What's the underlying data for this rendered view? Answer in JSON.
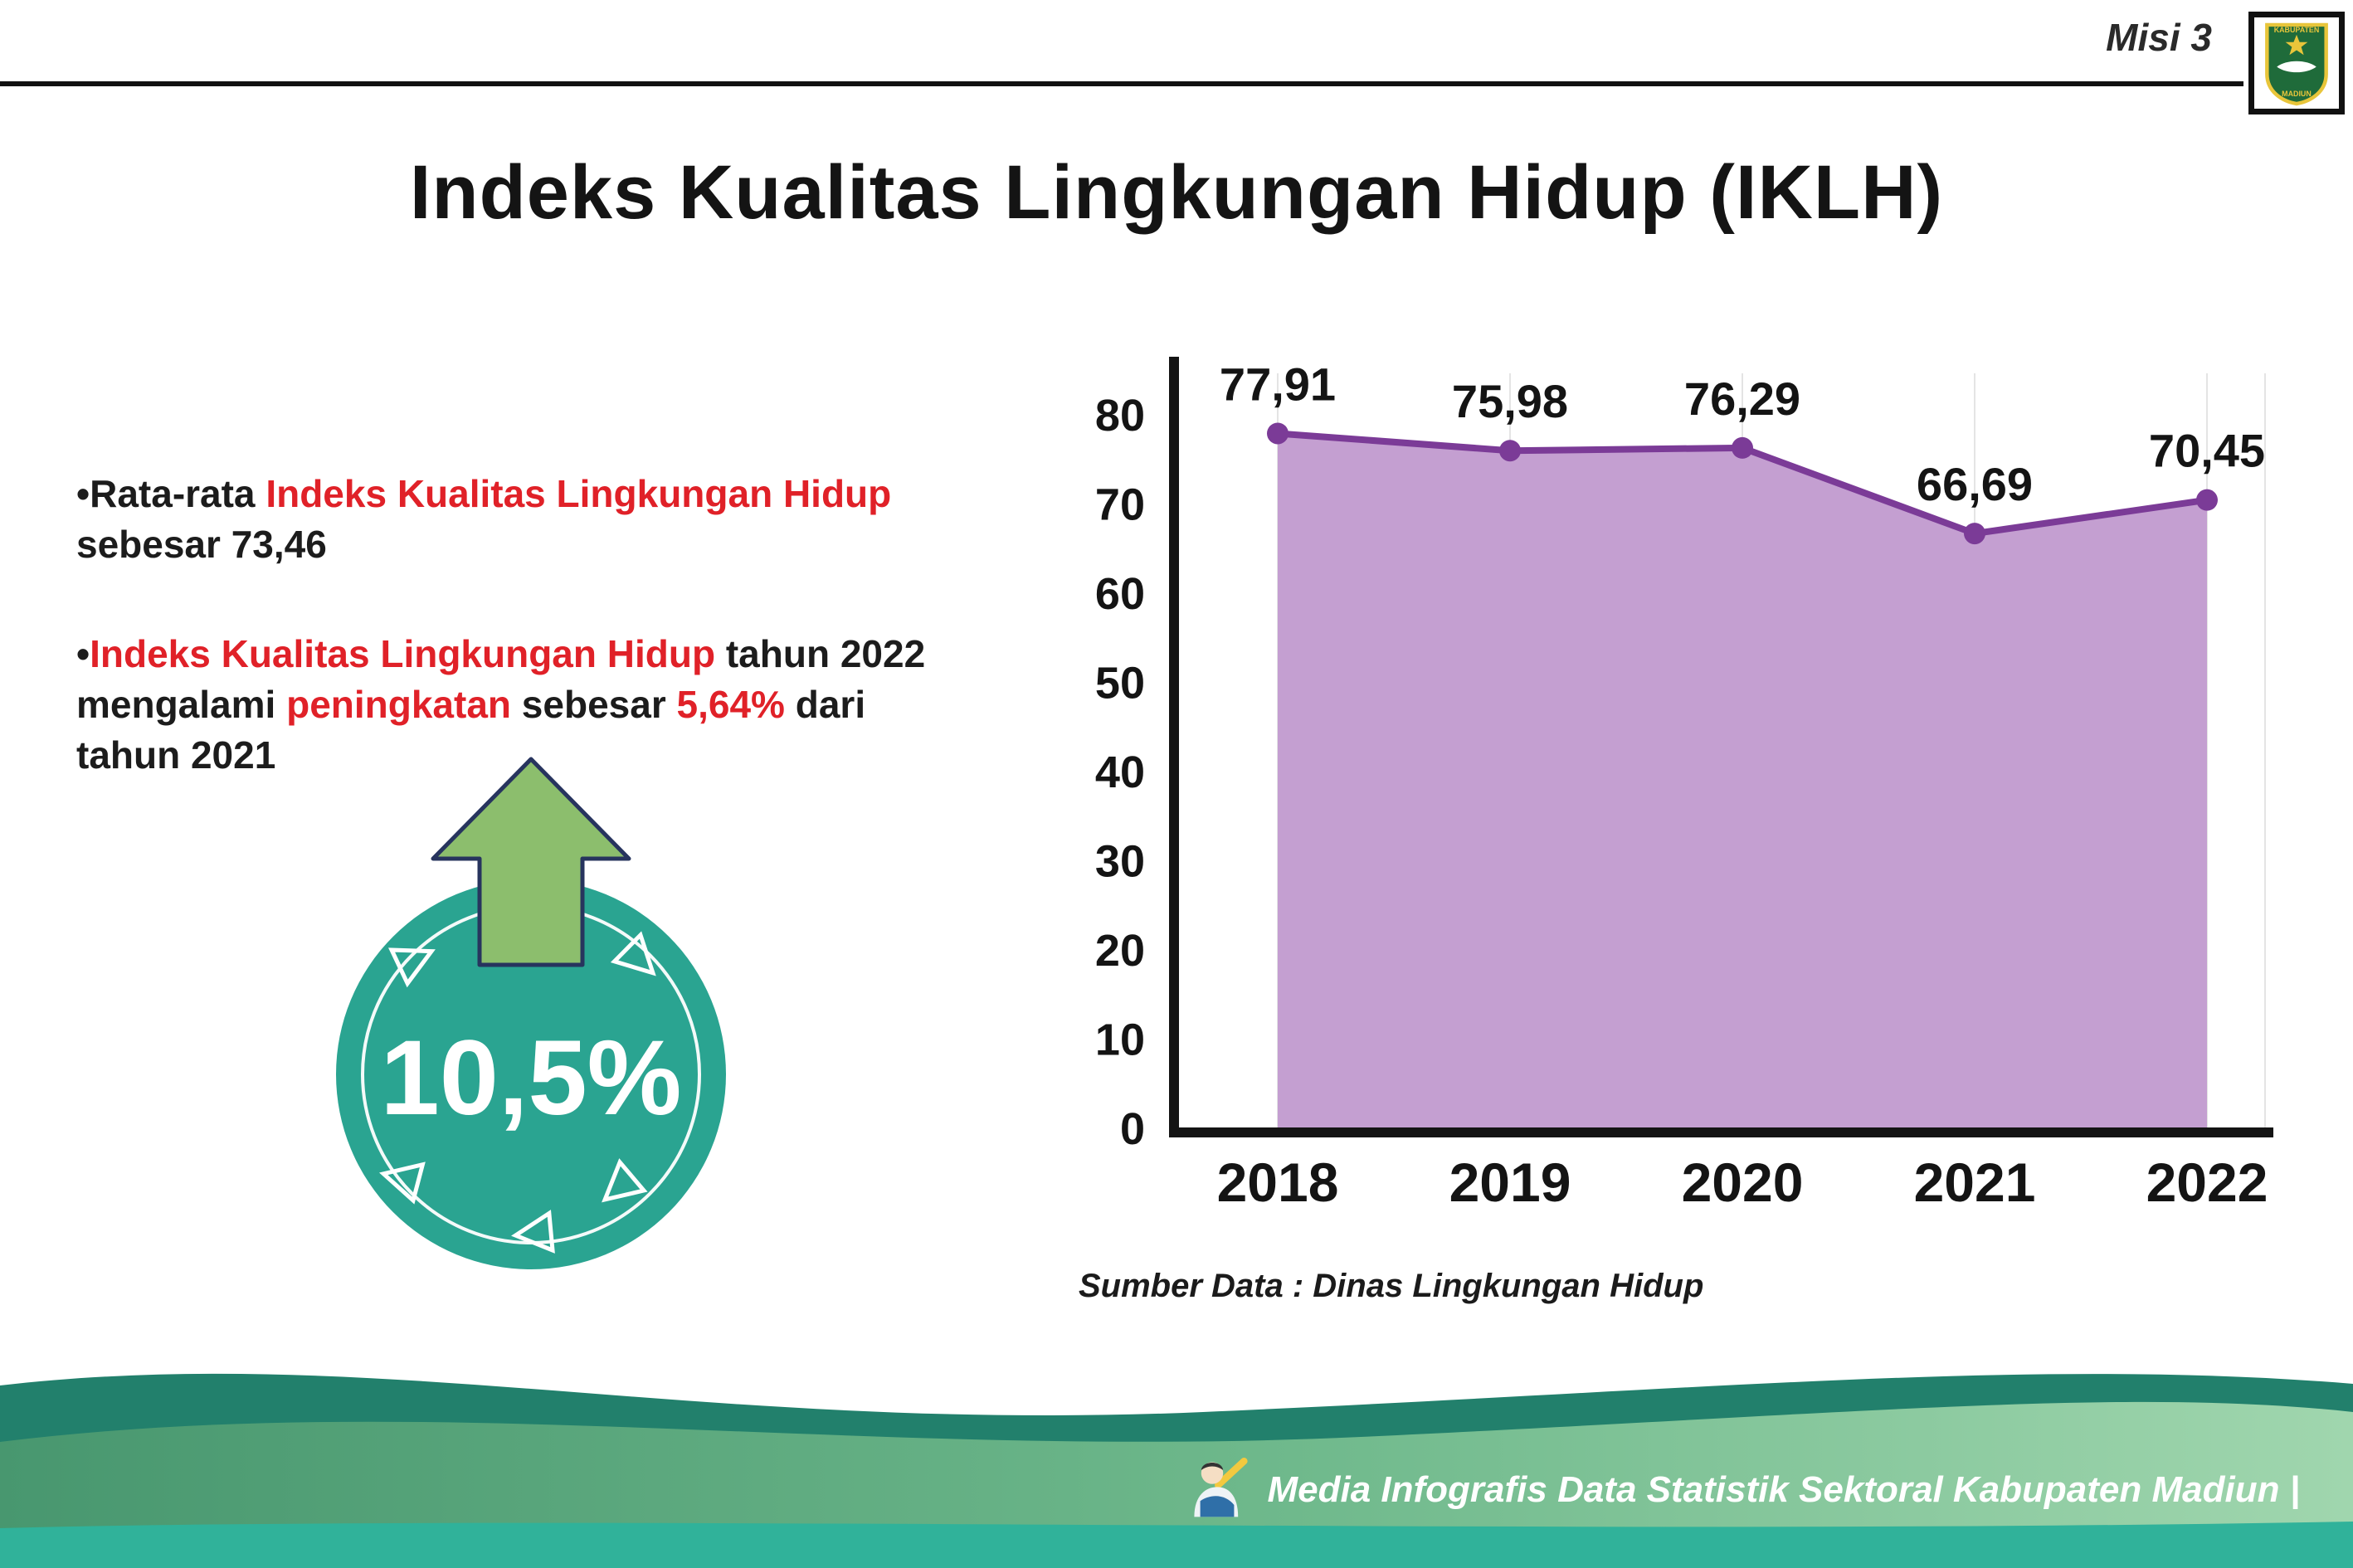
{
  "meta": {
    "misi_label": "Misi 3"
  },
  "logo": {
    "top": "KABUPATEN",
    "bottom": "MADIUN"
  },
  "title": "Indeks Kualitas Lingkungan Hidup (IKLH)",
  "bullets": {
    "marker": "•",
    "b1_pre": "Rata-rata ",
    "b1_red": "Indeks Kualitas Lingkungan Hidup",
    "b1_post": " sebesar 73,46",
    "b2_red1": "Indeks Kualitas Lingkungan Hidup",
    "b2_mid1": " tahun 2022 mengalami ",
    "b2_red2": "peningkatan",
    "b2_mid2": " sebesar ",
    "b2_red3": "5,64%",
    "b2_post": " dari tahun 2021"
  },
  "badge": {
    "value": "10,5%"
  },
  "chart_data": {
    "type": "area",
    "title": "",
    "categories": [
      "2018",
      "2019",
      "2020",
      "2021",
      "2022"
    ],
    "values": [
      77.91,
      75.98,
      76.29,
      66.69,
      70.45
    ],
    "value_labels": [
      "77,91",
      "75,98",
      "76,29",
      "66,69",
      "70,45"
    ],
    "ylim": [
      0,
      80
    ],
    "ytick_step": 10,
    "grid": "vertical-light",
    "legend": "none",
    "source": "Sumber Data : Dinas Lingkungan Hidup",
    "colors": {
      "area_fill": "#c49fd1",
      "line": "#7b3b97",
      "marker": "#7b3b97",
      "axis": "#141414"
    }
  },
  "footer": {
    "credit": "Media Infografis Data Statistik Sektoral Kabupaten Madiun |"
  }
}
